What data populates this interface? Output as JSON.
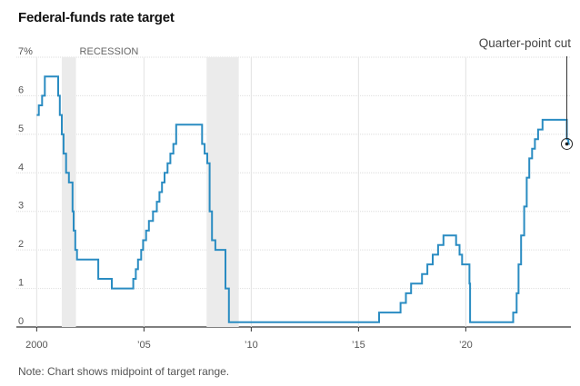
{
  "chart_data": {
    "type": "line",
    "title": "Federal-funds rate target",
    "note": "Note: Chart shows midpoint of target range.",
    "y_unit_label": "7%",
    "ylim": [
      0,
      7
    ],
    "y_ticks": [
      0,
      1,
      2,
      3,
      4,
      5,
      6,
      7
    ],
    "y_tick_labels": [
      "0",
      "1",
      "2",
      "3",
      "4",
      "5",
      "6",
      "7%"
    ],
    "xlim": [
      1999.9,
      2024.9
    ],
    "x_ticks": [
      2000,
      2005,
      2010,
      2015,
      2020
    ],
    "x_tick_labels": [
      "2000",
      "’05",
      "’10",
      "’15",
      "’20"
    ],
    "grid": true,
    "recession_label": "RECESSION",
    "recessions": [
      [
        2001.17,
        2001.83
      ],
      [
        2007.92,
        2009.42
      ]
    ],
    "annotation": {
      "label": "Quarter-point cut",
      "x": 2024.71,
      "y": 4.75
    },
    "line_color": "#2a8cc2",
    "series": [
      {
        "step": true,
        "points": [
          [
            2000.0,
            5.5
          ],
          [
            2000.1,
            5.75
          ],
          [
            2000.25,
            6.0
          ],
          [
            2000.38,
            6.5
          ],
          [
            2001.0,
            6.0
          ],
          [
            2001.08,
            5.5
          ],
          [
            2001.17,
            5.0
          ],
          [
            2001.25,
            4.5
          ],
          [
            2001.37,
            4.0
          ],
          [
            2001.5,
            3.75
          ],
          [
            2001.67,
            3.0
          ],
          [
            2001.72,
            2.5
          ],
          [
            2001.8,
            2.0
          ],
          [
            2001.88,
            1.75
          ],
          [
            2002.87,
            1.25
          ],
          [
            2003.5,
            1.0
          ],
          [
            2004.5,
            1.25
          ],
          [
            2004.62,
            1.5
          ],
          [
            2004.72,
            1.75
          ],
          [
            2004.87,
            2.0
          ],
          [
            2004.96,
            2.25
          ],
          [
            2005.1,
            2.5
          ],
          [
            2005.23,
            2.75
          ],
          [
            2005.42,
            3.0
          ],
          [
            2005.6,
            3.25
          ],
          [
            2005.72,
            3.5
          ],
          [
            2005.84,
            3.75
          ],
          [
            2005.96,
            4.0
          ],
          [
            2006.1,
            4.25
          ],
          [
            2006.23,
            4.5
          ],
          [
            2006.37,
            4.75
          ],
          [
            2006.5,
            5.25
          ],
          [
            2007.71,
            4.75
          ],
          [
            2007.83,
            4.5
          ],
          [
            2007.95,
            4.25
          ],
          [
            2008.06,
            3.0
          ],
          [
            2008.17,
            2.25
          ],
          [
            2008.33,
            2.0
          ],
          [
            2008.8,
            1.0
          ],
          [
            2008.96,
            0.125
          ],
          [
            2015.96,
            0.375
          ],
          [
            2016.96,
            0.625
          ],
          [
            2017.21,
            0.875
          ],
          [
            2017.45,
            1.125
          ],
          [
            2017.96,
            1.375
          ],
          [
            2018.21,
            1.625
          ],
          [
            2018.46,
            1.875
          ],
          [
            2018.71,
            2.125
          ],
          [
            2018.96,
            2.375
          ],
          [
            2019.55,
            2.125
          ],
          [
            2019.71,
            1.875
          ],
          [
            2019.83,
            1.625
          ],
          [
            2020.17,
            1.125
          ],
          [
            2020.2,
            0.125
          ],
          [
            2022.21,
            0.375
          ],
          [
            2022.37,
            0.875
          ],
          [
            2022.46,
            1.625
          ],
          [
            2022.58,
            2.375
          ],
          [
            2022.72,
            3.125
          ],
          [
            2022.84,
            3.875
          ],
          [
            2022.96,
            4.375
          ],
          [
            2023.09,
            4.625
          ],
          [
            2023.22,
            4.875
          ],
          [
            2023.37,
            5.125
          ],
          [
            2023.58,
            5.375
          ],
          [
            2024.71,
            4.875
          ],
          [
            2024.78,
            4.75
          ],
          [
            2024.85,
            4.75
          ]
        ]
      }
    ]
  }
}
